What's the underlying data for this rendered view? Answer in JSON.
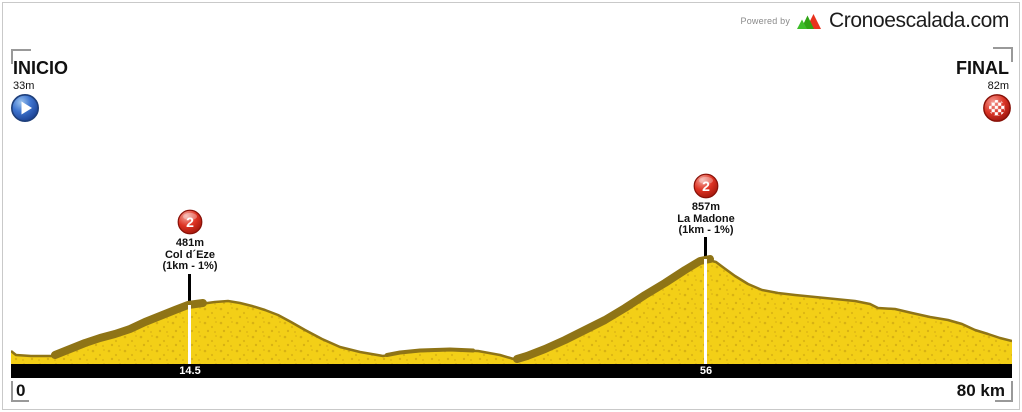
{
  "header": {
    "powered_by": "Powered by",
    "site": "Cronoescalada.com"
  },
  "start": {
    "label": "INICIO",
    "elevation": "33m"
  },
  "finish": {
    "label": "FINAL",
    "elevation": "82m"
  },
  "climbs": [
    {
      "category": "2",
      "elevation": "481m",
      "name": "Col d´Eze",
      "detail": "(1km - 1%)",
      "km_label": "14.5"
    },
    {
      "category": "2",
      "elevation": "857m",
      "name": "La Madone",
      "detail": "(1km - 1%)",
      "km_label": "56"
    }
  ],
  "axis": {
    "start": "0",
    "end": "80 km"
  },
  "colors": {
    "profile_fill": "#F3CF17",
    "climb_band": "#8F7416",
    "speckle": "#B98F10",
    "category_marker_red": "#D93025",
    "start_icon_blue": "#2F63C4",
    "finish_icon_red": "#D32F2F",
    "bar_black": "#000000",
    "bracket_gray": "#999999",
    "logo_green": "#3DBD2A",
    "logo_dark_green": "#2FA315",
    "logo_red": "#E8321E"
  },
  "chart_data": {
    "type": "area",
    "title": "Stage elevation profile",
    "x_unit": "km",
    "y_unit": "m",
    "x_range": [
      0,
      80
    ],
    "ylim": [
      0,
      900
    ],
    "start_point": {
      "km": 0,
      "elevation_m": 33,
      "label": "INICIO"
    },
    "finish_point": {
      "km": 80,
      "elevation_m": 82,
      "label": "FINAL"
    },
    "climb_summits": [
      {
        "km": 14.5,
        "elevation_m": 481,
        "name": "Col d´Eze",
        "category": "2",
        "last_km_stat": "(1km - 1%)"
      },
      {
        "km": 56,
        "elevation_m": 857,
        "name": "La Madone",
        "category": "2",
        "last_km_stat": "(1km - 1%)"
      }
    ],
    "profile_km_elevation": [
      [
        0,
        33
      ],
      [
        2,
        35
      ],
      [
        4,
        45
      ],
      [
        6,
        110
      ],
      [
        8,
        190
      ],
      [
        10,
        270
      ],
      [
        12,
        360
      ],
      [
        14.5,
        481
      ],
      [
        16,
        495
      ],
      [
        17.5,
        500
      ],
      [
        19,
        470
      ],
      [
        21,
        420
      ],
      [
        23,
        350
      ],
      [
        25,
        260
      ],
      [
        27,
        170
      ],
      [
        29,
        95
      ],
      [
        30.5,
        60
      ],
      [
        32,
        75
      ],
      [
        34,
        90
      ],
      [
        35.5,
        95
      ],
      [
        37,
        88
      ],
      [
        39,
        55
      ],
      [
        40.5,
        35
      ],
      [
        42,
        65
      ],
      [
        44,
        135
      ],
      [
        46,
        215
      ],
      [
        48,
        300
      ],
      [
        50,
        390
      ],
      [
        52,
        480
      ],
      [
        54,
        590
      ],
      [
        55.5,
        720
      ],
      [
        56,
        857
      ],
      [
        57,
        830
      ],
      [
        58.5,
        760
      ],
      [
        60,
        690
      ],
      [
        61.5,
        640
      ],
      [
        63,
        610
      ],
      [
        65,
        590
      ],
      [
        67,
        570
      ],
      [
        68.5,
        545
      ],
      [
        69.5,
        510
      ],
      [
        71,
        500
      ],
      [
        73,
        465
      ],
      [
        75,
        430
      ],
      [
        76.5,
        400
      ],
      [
        78,
        250
      ],
      [
        79,
        180
      ],
      [
        80,
        82
      ]
    ]
  },
  "chart_render": {
    "outline": [
      [
        0,
        101
      ],
      [
        5,
        105
      ],
      [
        20,
        106
      ],
      [
        44,
        106
      ],
      [
        59,
        100
      ],
      [
        74,
        94
      ],
      [
        89,
        89
      ],
      [
        104,
        85
      ],
      [
        119,
        80
      ],
      [
        134,
        73
      ],
      [
        149,
        67
      ],
      [
        164,
        61
      ],
      [
        177,
        56
      ],
      [
        189,
        54
      ],
      [
        204,
        52
      ],
      [
        217,
        51
      ],
      [
        229,
        53
      ],
      [
        241,
        56
      ],
      [
        254,
        60
      ],
      [
        267,
        65
      ],
      [
        280,
        72
      ],
      [
        294,
        80
      ],
      [
        311,
        89
      ],
      [
        329,
        97
      ],
      [
        349,
        102
      ],
      [
        372,
        106
      ],
      [
        389,
        103
      ],
      [
        409,
        101
      ],
      [
        439,
        100
      ],
      [
        467,
        101
      ],
      [
        489,
        105
      ],
      [
        506,
        110
      ],
      [
        516,
        107
      ],
      [
        534,
        100
      ],
      [
        554,
        91
      ],
      [
        574,
        81
      ],
      [
        594,
        71
      ],
      [
        614,
        59
      ],
      [
        634,
        46
      ],
      [
        654,
        34
      ],
      [
        674,
        21
      ],
      [
        689,
        12
      ],
      [
        697,
        10
      ],
      [
        705,
        12
      ],
      [
        713,
        18
      ],
      [
        724,
        26
      ],
      [
        737,
        34
      ],
      [
        751,
        40
      ],
      [
        767,
        43
      ],
      [
        784,
        45
      ],
      [
        804,
        47
      ],
      [
        824,
        49
      ],
      [
        844,
        51
      ],
      [
        859,
        54
      ],
      [
        867,
        58
      ],
      [
        884,
        59
      ],
      [
        901,
        63
      ],
      [
        919,
        67
      ],
      [
        937,
        70
      ],
      [
        951,
        74
      ],
      [
        964,
        80
      ],
      [
        977,
        84
      ],
      [
        989,
        88
      ],
      [
        1001,
        91
      ]
    ],
    "band1": [
      [
        44,
        105
      ],
      [
        59,
        99
      ],
      [
        74,
        93
      ],
      [
        89,
        88
      ],
      [
        104,
        84
      ],
      [
        119,
        79
      ],
      [
        134,
        72
      ],
      [
        149,
        66
      ],
      [
        164,
        60
      ],
      [
        177,
        55
      ],
      [
        192,
        53
      ]
    ],
    "band2": [
      [
        506,
        109
      ],
      [
        516,
        106
      ],
      [
        534,
        99
      ],
      [
        554,
        90
      ],
      [
        574,
        80
      ],
      [
        594,
        70
      ],
      [
        614,
        58
      ],
      [
        634,
        45
      ],
      [
        654,
        33
      ],
      [
        674,
        20
      ],
      [
        689,
        11
      ],
      [
        699,
        9
      ]
    ],
    "bump": [
      [
        376,
        105
      ],
      [
        389,
        102.5
      ],
      [
        409,
        100.5
      ],
      [
        439,
        99.5
      ],
      [
        462,
        100.5
      ]
    ]
  }
}
